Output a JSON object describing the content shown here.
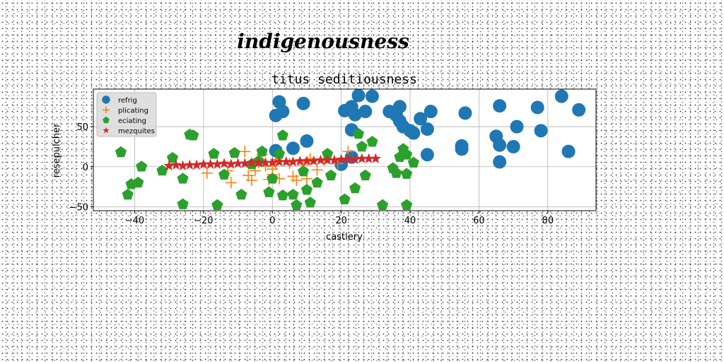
{
  "chart_data": {
    "type": "scatter",
    "suptitle": "indigenousness",
    "title": "titus seditiousness",
    "xlabel": "castlery",
    "ylabel": "resepulcher",
    "xlim": [
      -52,
      94
    ],
    "ylim": [
      -55,
      97
    ],
    "xticks": [
      -40,
      -20,
      0,
      20,
      40,
      60,
      80
    ],
    "yticks": [
      -50,
      0,
      50
    ],
    "grid": true,
    "legend_position": "top-left",
    "series": [
      {
        "name": "refrig",
        "marker": "circle",
        "color": "#1f77b4",
        "points": [
          [
            1,
            64
          ],
          [
            2,
            81
          ],
          [
            3,
            69
          ],
          [
            6,
            23
          ],
          [
            9,
            79
          ],
          [
            10,
            32
          ],
          [
            1,
            20
          ],
          [
            21,
            70
          ],
          [
            23,
            75
          ],
          [
            23,
            46
          ],
          [
            24,
            65
          ],
          [
            25,
            89
          ],
          [
            27,
            69
          ],
          [
            29,
            88
          ],
          [
            34,
            69
          ],
          [
            36,
            64
          ],
          [
            37,
            57
          ],
          [
            37,
            75
          ],
          [
            38,
            50
          ],
          [
            40,
            45
          ],
          [
            41,
            42
          ],
          [
            43,
            60
          ],
          [
            45,
            47
          ],
          [
            46,
            69
          ],
          [
            45,
            15
          ],
          [
            55,
            26
          ],
          [
            55,
            22
          ],
          [
            56,
            67
          ],
          [
            65,
            38
          ],
          [
            66,
            76
          ],
          [
            66,
            27
          ],
          [
            66,
            6
          ],
          [
            70,
            25
          ],
          [
            71,
            50
          ],
          [
            77,
            74
          ],
          [
            78,
            45
          ],
          [
            84,
            88
          ],
          [
            86,
            19
          ],
          [
            89,
            71
          ],
          [
            20,
            3
          ],
          [
            23,
            12
          ]
        ]
      },
      {
        "name": "plicating",
        "marker": "plus",
        "color": "#ff7f0e",
        "points": [
          [
            -19,
            -8
          ],
          [
            -13,
            -5
          ],
          [
            -12,
            -20
          ],
          [
            -8,
            19
          ],
          [
            -7,
            -11
          ],
          [
            -6,
            -17
          ],
          [
            -5,
            -5
          ],
          [
            -4,
            5
          ],
          [
            -2,
            1
          ],
          [
            -1,
            -16
          ],
          [
            0,
            -10
          ],
          [
            0,
            -3
          ],
          [
            1,
            9
          ],
          [
            1,
            3
          ],
          [
            2,
            -15
          ],
          [
            5,
            4
          ],
          [
            6,
            -12
          ],
          [
            7,
            -17
          ],
          [
            9,
            2
          ],
          [
            10,
            -15
          ],
          [
            11,
            10
          ],
          [
            13,
            -4
          ],
          [
            15,
            8
          ],
          [
            19,
            4
          ],
          [
            22,
            19
          ],
          [
            -3,
            15
          ]
        ]
      },
      {
        "name": "eciating",
        "marker": "pentagon",
        "color": "#2ca02c",
        "points": [
          [
            -44,
            18
          ],
          [
            -42,
            -35
          ],
          [
            -41,
            -22
          ],
          [
            -39,
            -20
          ],
          [
            -38,
            0
          ],
          [
            -32,
            -5
          ],
          [
            -29,
            11
          ],
          [
            -26,
            -15
          ],
          [
            -26,
            -47
          ],
          [
            -24,
            40
          ],
          [
            -23,
            39
          ],
          [
            -17,
            16
          ],
          [
            -16,
            -48
          ],
          [
            -14,
            -10
          ],
          [
            -11,
            17
          ],
          [
            -9,
            -35
          ],
          [
            -6,
            3
          ],
          [
            -4,
            7
          ],
          [
            -3,
            19
          ],
          [
            -1,
            -32
          ],
          [
            0,
            -15
          ],
          [
            2,
            16
          ],
          [
            3,
            39
          ],
          [
            3,
            -36
          ],
          [
            6,
            -35
          ],
          [
            7,
            -48
          ],
          [
            9,
            -6
          ],
          [
            10,
            -29
          ],
          [
            11,
            -45
          ],
          [
            13,
            -20
          ],
          [
            16,
            16
          ],
          [
            17,
            -11
          ],
          [
            21,
            -41
          ],
          [
            24,
            -27
          ],
          [
            25,
            41
          ],
          [
            26,
            25
          ],
          [
            27,
            -11
          ],
          [
            29,
            31
          ],
          [
            32,
            -48
          ],
          [
            35,
            -2
          ],
          [
            36,
            -8
          ],
          [
            37,
            12
          ],
          [
            38,
            22
          ],
          [
            39,
            -9
          ],
          [
            39,
            -48
          ],
          [
            39,
            15
          ],
          [
            41,
            5
          ]
        ]
      },
      {
        "name": "mezquites",
        "marker": "star",
        "color": "#d62728",
        "points": [
          [
            -30,
            1
          ],
          [
            -28,
            2
          ],
          [
            -26,
            1
          ],
          [
            -24,
            2
          ],
          [
            -22,
            2
          ],
          [
            -20,
            3
          ],
          [
            -18,
            3
          ],
          [
            -16,
            3
          ],
          [
            -14,
            4
          ],
          [
            -12,
            3
          ],
          [
            -10,
            4
          ],
          [
            -8,
            4
          ],
          [
            -6,
            5
          ],
          [
            -4,
            5
          ],
          [
            -2,
            5
          ],
          [
            0,
            5
          ],
          [
            2,
            6
          ],
          [
            4,
            6
          ],
          [
            6,
            6
          ],
          [
            8,
            7
          ],
          [
            10,
            7
          ],
          [
            12,
            7
          ],
          [
            14,
            8
          ],
          [
            16,
            8
          ],
          [
            18,
            8
          ],
          [
            20,
            9
          ],
          [
            22,
            9
          ],
          [
            24,
            9
          ],
          [
            26,
            10
          ],
          [
            28,
            10
          ],
          [
            30,
            10
          ]
        ]
      }
    ]
  }
}
